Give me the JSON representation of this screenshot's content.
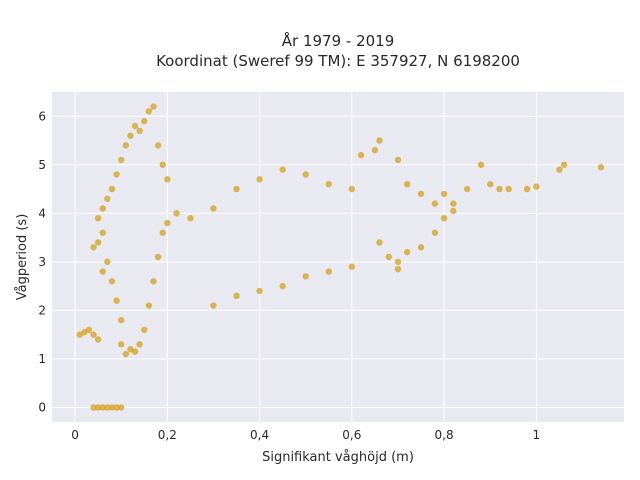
{
  "chart_data": {
    "type": "scatter",
    "title": "År 1979 - 2019",
    "subtitle": "Koordinat (Sweref 99 TM): E 357927, N 6198200",
    "xlabel": "Signifikant våghöjd (m)",
    "ylabel": "Vågperiod (s)",
    "xlim": [
      -0.05,
      1.19
    ],
    "ylim": [
      -0.3,
      6.5
    ],
    "xticks": [
      0,
      0.2,
      0.4,
      0.6,
      0.8,
      1
    ],
    "xtick_labels": [
      "0",
      "0,2",
      "0,4",
      "0,6",
      "0,8",
      "1"
    ],
    "yticks": [
      0,
      1,
      2,
      3,
      4,
      5,
      6
    ],
    "ytick_labels": [
      "0",
      "1",
      "2",
      "3",
      "4",
      "5",
      "6"
    ],
    "grid": true,
    "background_color": "#e9e9f2",
    "marker_color": "#d4a017",
    "series": [
      {
        "points": [
          [
            0.04,
            0
          ],
          [
            0.05,
            0
          ],
          [
            0.06,
            0
          ],
          [
            0.07,
            0
          ],
          [
            0.08,
            0
          ],
          [
            0.09,
            0
          ],
          [
            0.1,
            0
          ],
          [
            0.01,
            1.5
          ],
          [
            0.02,
            1.55
          ],
          [
            0.03,
            1.6
          ],
          [
            0.04,
            1.5
          ],
          [
            0.05,
            1.4
          ],
          [
            0.04,
            3.3
          ],
          [
            0.05,
            3.4
          ],
          [
            0.06,
            3.6
          ],
          [
            0.05,
            3.9
          ],
          [
            0.06,
            4.1
          ],
          [
            0.07,
            4.3
          ],
          [
            0.07,
            3.0
          ],
          [
            0.06,
            2.8
          ],
          [
            0.08,
            4.5
          ],
          [
            0.09,
            4.8
          ],
          [
            0.1,
            5.1
          ],
          [
            0.11,
            5.4
          ],
          [
            0.12,
            5.6
          ],
          [
            0.13,
            5.8
          ],
          [
            0.14,
            5.7
          ],
          [
            0.15,
            5.9
          ],
          [
            0.16,
            6.1
          ],
          [
            0.17,
            6.2
          ],
          [
            0.18,
            5.4
          ],
          [
            0.19,
            5.0
          ],
          [
            0.2,
            4.7
          ],
          [
            0.08,
            2.6
          ],
          [
            0.09,
            2.2
          ],
          [
            0.1,
            1.8
          ],
          [
            0.1,
            1.3
          ],
          [
            0.11,
            1.1
          ],
          [
            0.12,
            1.2
          ],
          [
            0.13,
            1.15
          ],
          [
            0.14,
            1.3
          ],
          [
            0.15,
            1.6
          ],
          [
            0.16,
            2.1
          ],
          [
            0.17,
            2.6
          ],
          [
            0.18,
            3.1
          ],
          [
            0.19,
            3.6
          ],
          [
            0.2,
            3.8
          ],
          [
            0.22,
            4.0
          ],
          [
            0.25,
            3.9
          ],
          [
            0.3,
            4.1
          ],
          [
            0.35,
            4.5
          ],
          [
            0.4,
            4.7
          ],
          [
            0.45,
            4.9
          ],
          [
            0.5,
            4.8
          ],
          [
            0.55,
            4.6
          ],
          [
            0.6,
            4.5
          ],
          [
            0.3,
            2.1
          ],
          [
            0.35,
            2.3
          ],
          [
            0.4,
            2.4
          ],
          [
            0.45,
            2.5
          ],
          [
            0.5,
            2.7
          ],
          [
            0.55,
            2.8
          ],
          [
            0.6,
            2.9
          ],
          [
            0.62,
            5.2
          ],
          [
            0.65,
            5.3
          ],
          [
            0.66,
            5.5
          ],
          [
            0.7,
            5.1
          ],
          [
            0.72,
            4.6
          ],
          [
            0.75,
            4.4
          ],
          [
            0.78,
            4.2
          ],
          [
            0.8,
            4.4
          ],
          [
            0.82,
            4.2
          ],
          [
            0.85,
            4.5
          ],
          [
            0.88,
            5.0
          ],
          [
            0.9,
            4.6
          ],
          [
            0.92,
            4.5
          ],
          [
            0.94,
            4.5
          ],
          [
            0.98,
            4.5
          ],
          [
            1.0,
            4.55
          ],
          [
            1.05,
            4.9
          ],
          [
            1.06,
            5.0
          ],
          [
            1.14,
            4.95
          ],
          [
            0.7,
            3.0
          ],
          [
            0.72,
            3.2
          ],
          [
            0.75,
            3.3
          ],
          [
            0.78,
            3.6
          ],
          [
            0.8,
            3.9
          ],
          [
            0.82,
            4.05
          ],
          [
            0.7,
            2.85
          ],
          [
            0.66,
            3.4
          ],
          [
            0.68,
            3.1
          ]
        ]
      }
    ]
  }
}
